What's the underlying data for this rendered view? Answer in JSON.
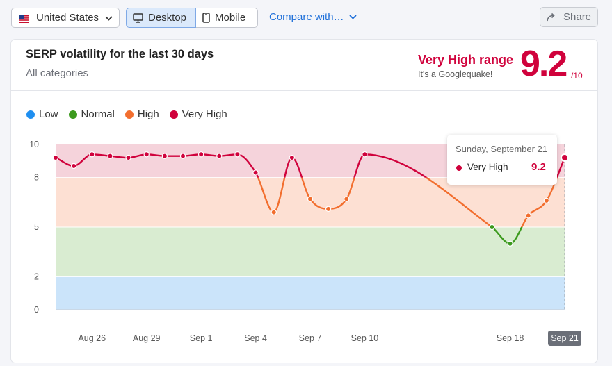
{
  "toolbar": {
    "country": "United States",
    "country_icon": "us-flag-icon",
    "desktop_label": "Desktop",
    "mobile_label": "Mobile",
    "compare_label": "Compare with…",
    "share_label": "Share"
  },
  "card": {
    "title": "SERP volatility for the last 30 days",
    "subtitle": "All categories",
    "range_label": "Very High range",
    "range_note": "It's a Googlequake!",
    "score": "9.2",
    "score_max": "/10"
  },
  "legend": [
    {
      "label": "Low",
      "color": "#1f8ff0"
    },
    {
      "label": "Normal",
      "color": "#3c9a1e"
    },
    {
      "label": "High",
      "color": "#f26e2e"
    },
    {
      "label": "Very High",
      "color": "#d0023c"
    }
  ],
  "tooltip": {
    "date": "Sunday, September 21",
    "label": "Very High",
    "value": "9.2"
  },
  "chart_data": {
    "type": "line",
    "title": "SERP volatility for the last 30 days",
    "y_ticks": [
      0,
      2,
      5,
      8,
      10
    ],
    "ylim": [
      0,
      10
    ],
    "bands": [
      {
        "name": "Low",
        "from": 0,
        "to": 2,
        "color": "#cbe4fa"
      },
      {
        "name": "Normal",
        "from": 2,
        "to": 5,
        "color": "#d9ecd1"
      },
      {
        "name": "High",
        "from": 5,
        "to": 8,
        "color": "#fde0d3"
      },
      {
        "name": "Very High",
        "from": 8,
        "to": 10,
        "color": "#f5d3db"
      }
    ],
    "x_tick_labels": [
      {
        "label": "Aug 26",
        "day": 2
      },
      {
        "label": "Aug 29",
        "day": 5
      },
      {
        "label": "Sep 1",
        "day": 8
      },
      {
        "label": "Sep 4",
        "day": 11
      },
      {
        "label": "Sep 7",
        "day": 14
      },
      {
        "label": "Sep 10",
        "day": 17
      },
      {
        "label": "Sep 18",
        "day": 25
      },
      {
        "label": "Sep 21",
        "day": 28,
        "highlight": true
      }
    ],
    "points": [
      {
        "day": 0,
        "date": "Aug 24",
        "value": 9.2
      },
      {
        "day": 1,
        "date": "Aug 25",
        "value": 8.7
      },
      {
        "day": 2,
        "date": "Aug 26",
        "value": 9.4
      },
      {
        "day": 3,
        "date": "Aug 27",
        "value": 9.3
      },
      {
        "day": 4,
        "date": "Aug 28",
        "value": 9.2
      },
      {
        "day": 5,
        "date": "Aug 29",
        "value": 9.4
      },
      {
        "day": 6,
        "date": "Aug 30",
        "value": 9.3
      },
      {
        "day": 7,
        "date": "Aug 31",
        "value": 9.3
      },
      {
        "day": 8,
        "date": "Sep 1",
        "value": 9.4
      },
      {
        "day": 9,
        "date": "Sep 2",
        "value": 9.3
      },
      {
        "day": 10,
        "date": "Sep 3",
        "value": 9.4
      },
      {
        "day": 11,
        "date": "Sep 4",
        "value": 8.3
      },
      {
        "day": 12,
        "date": "Sep 5",
        "value": 5.9
      },
      {
        "day": 13,
        "date": "Sep 6",
        "value": 9.2
      },
      {
        "day": 14,
        "date": "Sep 7",
        "value": 6.7
      },
      {
        "day": 15,
        "date": "Sep 8",
        "value": 6.1
      },
      {
        "day": 16,
        "date": "Sep 9",
        "value": 6.7
      },
      {
        "day": 17,
        "date": "Sep 10",
        "value": 9.4
      },
      {
        "day": 24,
        "date": "Sep 17",
        "value": 5.0
      },
      {
        "day": 25,
        "date": "Sep 18",
        "value": 4.0
      },
      {
        "day": 26,
        "date": "Sep 19",
        "value": 5.7
      },
      {
        "day": 27,
        "date": "Sep 20",
        "value": 6.6
      },
      {
        "day": 28,
        "date": "Sep 21",
        "value": 9.2
      }
    ],
    "colors": {
      "very_high": "#d0023c",
      "high": "#f26e2e",
      "normal": "#3c9a1e",
      "low": "#1f8ff0"
    }
  }
}
